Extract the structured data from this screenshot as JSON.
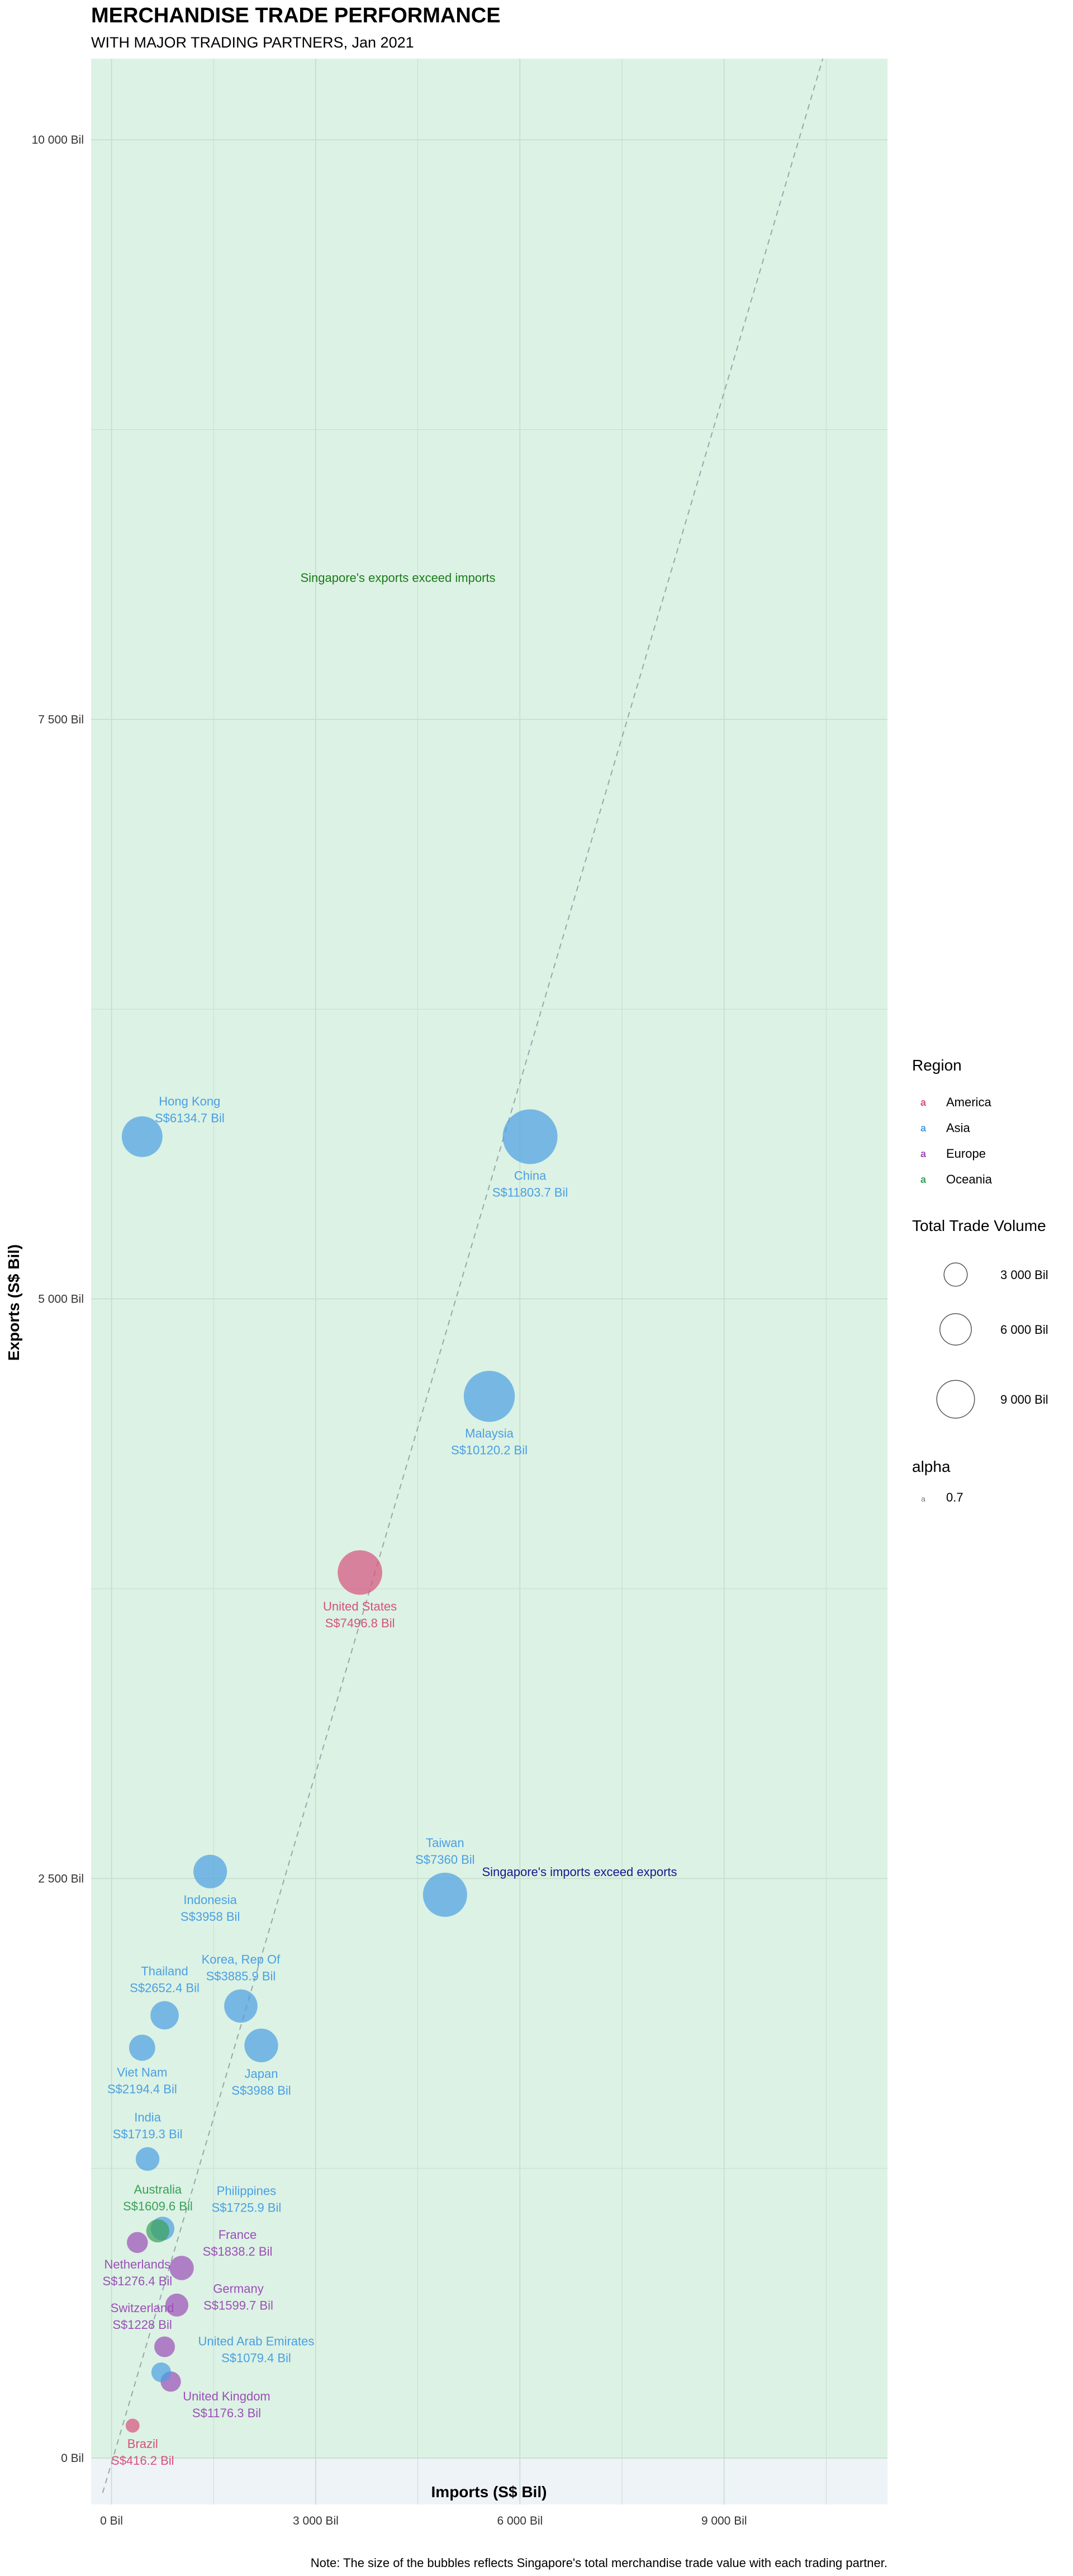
{
  "chart_data": {
    "type": "scatter",
    "title": "MERCHANDISE TRADE PERFORMANCE",
    "subtitle": "WITH MAJOR TRADING PARTNERS, Jan 2021",
    "xlabel": "Imports (S$ Bil)",
    "ylabel": "Exports (S$ Bil)",
    "xlim": [
      -300,
      11400
    ],
    "ylim": [
      -200,
      10350
    ],
    "x_ticks": [
      {
        "value": 0,
        "label": "0 Bil"
      },
      {
        "value": 3000,
        "label": "3 000 Bil"
      },
      {
        "value": 6000,
        "label": "6 000 Bil"
      },
      {
        "value": 9000,
        "label": "9 000 Bil"
      }
    ],
    "y_ticks": [
      {
        "value": 0,
        "label": "0 Bil"
      },
      {
        "value": 2500,
        "label": "2 500 Bil"
      },
      {
        "value": 5000,
        "label": "5 000 Bil"
      },
      {
        "value": 7500,
        "label": "7 500 Bil"
      },
      {
        "value": 10000,
        "label": "10 000 Bil"
      }
    ],
    "grid": true,
    "diagonal": "exports = imports",
    "annotations": {
      "exports_exceed": "Singapore's exports exceed imports",
      "imports_exceed": "Singapore's imports exceed exports"
    },
    "points": [
      {
        "name": "China",
        "total": "S$11803.7 Bil",
        "imports": 6150,
        "exports": 5700,
        "size": 11803.7,
        "region": "Asia"
      },
      {
        "name": "Hong Kong",
        "total": "S$6134.7 Bil",
        "imports": 450,
        "exports": 5700,
        "size": 6134.7,
        "region": "Asia"
      },
      {
        "name": "Malaysia",
        "total": "S$10120.2 Bil",
        "imports": 5550,
        "exports": 4580,
        "size": 10120.2,
        "region": "Asia"
      },
      {
        "name": "United States",
        "total": "S$7496.8 Bil",
        "imports": 3650,
        "exports": 3820,
        "size": 7496.8,
        "region": "America"
      },
      {
        "name": "Taiwan",
        "total": "S$7360 Bil",
        "imports": 4900,
        "exports": 2430,
        "size": 7360,
        "region": "Asia"
      },
      {
        "name": "Indonesia",
        "total": "S$3958 Bil",
        "imports": 1450,
        "exports": 2530,
        "size": 3958,
        "region": "Asia"
      },
      {
        "name": "Korea, Rep Of",
        "total": "S$3885.9 Bil",
        "imports": 1900,
        "exports": 1950,
        "size": 3885.9,
        "region": "Asia"
      },
      {
        "name": "Japan",
        "total": "S$3988 Bil",
        "imports": 2200,
        "exports": 1780,
        "size": 3988,
        "region": "Asia"
      },
      {
        "name": "Thailand",
        "total": "S$2652.4 Bil",
        "imports": 780,
        "exports": 1910,
        "size": 2652.4,
        "region": "Asia"
      },
      {
        "name": "Viet Nam",
        "total": "S$2194.4 Bil",
        "imports": 450,
        "exports": 1770,
        "size": 2194.4,
        "region": "Asia"
      },
      {
        "name": "India",
        "total": "S$1719.3 Bil",
        "imports": 530,
        "exports": 1290,
        "size": 1719.3,
        "region": "Asia"
      },
      {
        "name": "Philippines",
        "total": "S$1725.9 Bil",
        "imports": 750,
        "exports": 990,
        "size": 1725.9,
        "region": "Asia"
      },
      {
        "name": "Australia",
        "total": "S$1609.6 Bil",
        "imports": 680,
        "exports": 980,
        "size": 1609.6,
        "region": "Oceania"
      },
      {
        "name": "Netherlands",
        "total": "S$1276.4 Bil",
        "imports": 380,
        "exports": 930,
        "size": 1276.4,
        "region": "Europe"
      },
      {
        "name": "France",
        "total": "S$1838.2 Bil",
        "imports": 1030,
        "exports": 820,
        "size": 1838.2,
        "region": "Europe"
      },
      {
        "name": "Germany",
        "total": "S$1599.7 Bil",
        "imports": 960,
        "exports": 660,
        "size": 1599.7,
        "region": "Europe"
      },
      {
        "name": "Switzerland",
        "total": "S$1228 Bil",
        "imports": 780,
        "exports": 480,
        "size": 1228,
        "region": "Europe"
      },
      {
        "name": "United Arab Emirates",
        "total": "S$1079.4 Bil",
        "imports": 730,
        "exports": 370,
        "size": 1079.4,
        "region": "Asia"
      },
      {
        "name": "United Kingdom",
        "total": "S$1176.3 Bil",
        "imports": 870,
        "exports": 330,
        "size": 1176.3,
        "region": "Europe"
      },
      {
        "name": "Brazil",
        "total": "S$416.2 Bil",
        "imports": 310,
        "exports": 140,
        "size": 416.2,
        "region": "America"
      }
    ],
    "legend": {
      "region_title": "Region",
      "regions": [
        {
          "name": "America",
          "color": "#d6517d"
        },
        {
          "name": "Asia",
          "color": "#4a9fe3"
        },
        {
          "name": "Europe",
          "color": "#9b4fb8"
        },
        {
          "name": "Oceania",
          "color": "#3aa05a"
        }
      ],
      "size_title": "Total Trade Volume",
      "sizes": [
        {
          "value": 3000,
          "label": "3 000 Bil"
        },
        {
          "value": 6000,
          "label": "6 000 Bil"
        },
        {
          "value": 9000,
          "label": "9 000 Bil"
        }
      ],
      "alpha_title": "alpha",
      "alpha_value": "0.7"
    },
    "note": "Note: The size of the bubbles reflects Singapore's total merchandise trade value with each trading partner.",
    "colors": {
      "upper_region": "#dcf2e4",
      "lower_region": "#eef3f8",
      "exports_annotation": "#1b7a1b",
      "imports_annotation": "#17178f",
      "diagonal": "#9aa6ad",
      "grid": "#c6dccc"
    }
  }
}
